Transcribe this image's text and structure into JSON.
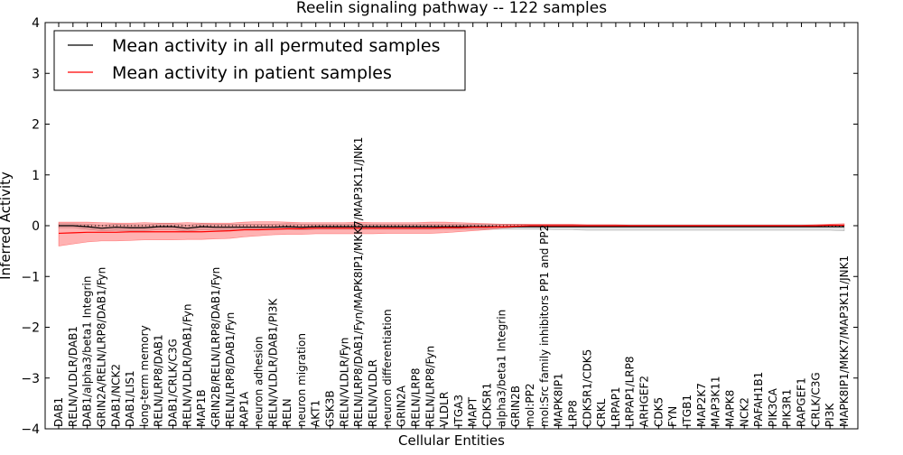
{
  "chart_data": {
    "type": "line",
    "title": "Reelin signaling pathway -- 122 samples",
    "xlabel": "Cellular Entities",
    "ylabel": "Inferred Activity",
    "ylim": [
      -4,
      4
    ],
    "yticks": [
      -4,
      -3,
      -2,
      -1,
      0,
      1,
      2,
      3,
      4
    ],
    "ytick_labels": [
      "−4",
      "−3",
      "−2",
      "−1",
      "0",
      "1",
      "2",
      "3",
      "4"
    ],
    "grid": false,
    "legend_position": "top-left",
    "categories": [
      "DAB1",
      "RELN/VLDLR/DAB1",
      "DAB1/alpha3/beta1 Integrin",
      "GRIN2A/RELN/LRP8/DAB1/Fyn",
      "DAB1/NCK2",
      "DAB1/LIS1",
      "long-term memory",
      "RELN/LRP8/DAB1",
      "DAB1/CRLK/C3G",
      "RELN/VLDLR/DAB1/Fyn",
      "MAP1B",
      "GRIN2B/RELN/LRP8/DAB1/Fyn",
      "RELN/LRP8/DAB1/Fyn",
      "RAP1A",
      "neuron adhesion",
      "RELN/VLDLR/DAB1/PI3K",
      "RELN",
      "neuron migration",
      "AKT1",
      "GSK3B",
      "RELN/VLDLR/Fyn",
      "RELN/LRP8/DAB1/Fyn/MAPK8IP1/MKK7/MAP3K11/JNK1",
      "RELN/VLDLR",
      "neuron differentiation",
      "GRIN2A",
      "RELN/LRP8",
      "RELN/LRP8/Fyn",
      "VLDLR",
      "ITGA3",
      "MAPT",
      "CDK5R1",
      "alpha3/beta1 Integrin",
      "GRIN2B",
      "mol:PP2",
      "mol:Src family inhibitors PP1 and PP2",
      "MAPK8IP1",
      "LRP8",
      "CDK5R1/CDK5",
      "CRKL",
      "LRPAP1",
      "LRPAP1/LRP8",
      "ARHGEF2",
      "CDK5",
      "FYN",
      "ITGB1",
      "MAP2K7",
      "MAP3K11",
      "MAPK8",
      "NCK2",
      "PAFAH1B1",
      "PIK3CA",
      "PIK3R1",
      "RAPGEF1",
      "CRLK/C3G",
      "PI3K",
      "MAPK8IP1/MKK7/MAP3K11/JNK1"
    ],
    "series": [
      {
        "name": "Mean activity in all permuted samples",
        "color": "#000000",
        "values": [
          0.0,
          0.0,
          -0.02,
          -0.05,
          -0.03,
          -0.04,
          -0.04,
          -0.02,
          -0.02,
          -0.05,
          -0.02,
          -0.03,
          -0.03,
          -0.03,
          -0.03,
          -0.03,
          -0.02,
          -0.03,
          -0.02,
          -0.02,
          -0.02,
          -0.02,
          -0.02,
          -0.02,
          -0.02,
          -0.02,
          -0.02,
          -0.02,
          -0.02,
          -0.02,
          -0.02,
          -0.02,
          -0.02,
          -0.02,
          -0.02,
          -0.02,
          -0.02,
          -0.02,
          -0.02,
          -0.02,
          -0.02,
          -0.02,
          -0.02,
          -0.02,
          -0.02,
          -0.02,
          -0.02,
          -0.02,
          -0.02,
          -0.02,
          -0.02,
          -0.02,
          -0.02,
          -0.02,
          -0.02,
          -0.02
        ],
        "band_upper": [
          0.04,
          0.04,
          0.03,
          0.01,
          0.03,
          0.02,
          0.02,
          0.04,
          0.04,
          0.01,
          0.04,
          0.03,
          0.03,
          0.03,
          0.03,
          0.03,
          0.04,
          0.03,
          0.03,
          0.03,
          0.03,
          0.03,
          0.03,
          0.03,
          0.03,
          0.03,
          0.03,
          0.03,
          0.03,
          0.03,
          0.03,
          0.03,
          0.03,
          0.02,
          0.02,
          0.02,
          0.02,
          0.02,
          0.02,
          0.02,
          0.02,
          0.02,
          0.02,
          0.02,
          0.02,
          0.02,
          0.02,
          0.02,
          0.02,
          0.02,
          0.02,
          0.02,
          0.02,
          0.02,
          0.02,
          0.02
        ],
        "band_lower": [
          -0.04,
          -0.04,
          -0.07,
          -0.1,
          -0.09,
          -0.1,
          -0.1,
          -0.08,
          -0.08,
          -0.11,
          -0.08,
          -0.09,
          -0.09,
          -0.08,
          -0.08,
          -0.08,
          -0.07,
          -0.08,
          -0.07,
          -0.07,
          -0.07,
          -0.07,
          -0.07,
          -0.07,
          -0.07,
          -0.07,
          -0.07,
          -0.07,
          -0.07,
          -0.07,
          -0.07,
          -0.07,
          -0.07,
          -0.07,
          -0.07,
          -0.08,
          -0.08,
          -0.09,
          -0.09,
          -0.09,
          -0.09,
          -0.09,
          -0.09,
          -0.09,
          -0.09,
          -0.09,
          -0.09,
          -0.09,
          -0.09,
          -0.09,
          -0.09,
          -0.09,
          -0.09,
          -0.09,
          -0.09,
          -0.1
        ]
      },
      {
        "name": "Mean activity in patient samples",
        "color": "#ff0000",
        "values": [
          -0.15,
          -0.14,
          -0.13,
          -0.13,
          -0.13,
          -0.12,
          -0.12,
          -0.12,
          -0.12,
          -0.12,
          -0.12,
          -0.11,
          -0.1,
          -0.08,
          -0.08,
          -0.07,
          -0.06,
          -0.06,
          -0.05,
          -0.05,
          -0.05,
          -0.05,
          -0.05,
          -0.05,
          -0.05,
          -0.05,
          -0.05,
          -0.04,
          -0.04,
          -0.03,
          -0.03,
          -0.02,
          -0.01,
          0.0,
          0.0,
          0.0,
          0.0,
          0.0,
          0.0,
          0.0,
          0.0,
          0.0,
          0.0,
          0.0,
          0.0,
          0.0,
          0.0,
          0.0,
          0.0,
          0.0,
          0.0,
          0.0,
          0.0,
          0.0,
          0.01,
          0.01
        ],
        "band_upper": [
          0.07,
          0.07,
          0.07,
          0.06,
          0.05,
          0.05,
          0.06,
          0.05,
          0.05,
          0.06,
          0.05,
          0.05,
          0.05,
          0.07,
          0.08,
          0.08,
          0.07,
          0.06,
          0.06,
          0.06,
          0.06,
          0.07,
          0.06,
          0.06,
          0.06,
          0.06,
          0.07,
          0.07,
          0.06,
          0.05,
          0.04,
          0.03,
          0.03,
          0.03,
          0.03,
          0.03,
          0.03,
          0.02,
          0.02,
          0.02,
          0.01,
          0.01,
          0.01,
          0.01,
          0.01,
          0.01,
          0.01,
          0.01,
          0.01,
          0.01,
          0.01,
          0.01,
          0.01,
          0.02,
          0.03,
          0.04
        ],
        "band_lower": [
          -0.4,
          -0.36,
          -0.32,
          -0.3,
          -0.3,
          -0.29,
          -0.28,
          -0.28,
          -0.28,
          -0.27,
          -0.27,
          -0.26,
          -0.25,
          -0.22,
          -0.2,
          -0.18,
          -0.17,
          -0.17,
          -0.16,
          -0.16,
          -0.16,
          -0.16,
          -0.16,
          -0.15,
          -0.15,
          -0.15,
          -0.15,
          -0.14,
          -0.12,
          -0.1,
          -0.08,
          -0.05,
          -0.03,
          -0.02,
          -0.02,
          -0.01,
          -0.01,
          -0.01,
          -0.01,
          -0.01,
          -0.01,
          -0.01,
          -0.01,
          -0.01,
          -0.01,
          -0.01,
          -0.01,
          -0.01,
          -0.01,
          -0.01,
          -0.01,
          -0.01,
          -0.01,
          -0.01,
          -0.01,
          -0.01
        ]
      }
    ],
    "zero_line": {
      "y": 0,
      "style": "dotted"
    }
  }
}
